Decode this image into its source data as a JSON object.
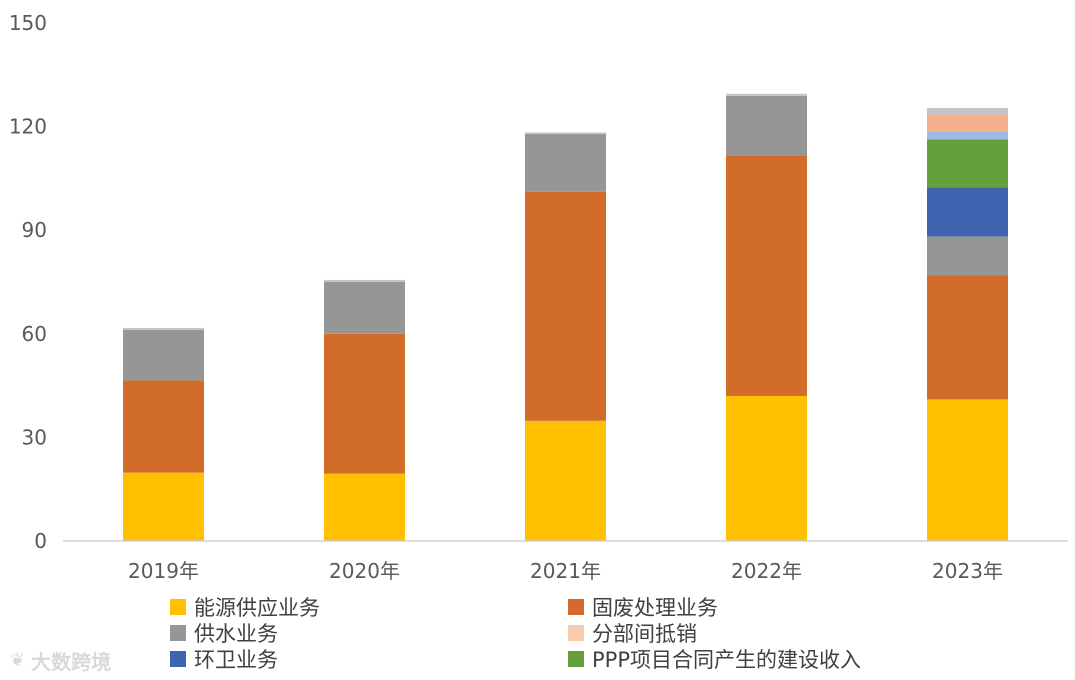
{
  "chart_data": {
    "type": "bar",
    "stacked": true,
    "categories": [
      "2019年",
      "2020年",
      "2021年",
      "2022年",
      "2023年"
    ],
    "ylim": [
      0,
      150
    ],
    "yticks": [
      0,
      30,
      60,
      90,
      120,
      150
    ],
    "grid": false,
    "legend_position": "bottom",
    "series": [
      {
        "name": "能源供应业务",
        "color": "#FFC000",
        "values": [
          19.8,
          19.5,
          34.8,
          42.0,
          41.0
        ]
      },
      {
        "name": "固废处理业务",
        "color": "#D26C29",
        "values": [
          26.7,
          40.5,
          66.3,
          69.6,
          36.0
        ]
      },
      {
        "name": "供水业务",
        "color": "#969696",
        "values": [
          14.6,
          15.0,
          16.8,
          17.3,
          11.2
        ]
      },
      {
        "name": "环卫业务",
        "color": "#3D63B1",
        "values": [
          0,
          0,
          0,
          0,
          14.2
        ]
      },
      {
        "name": "PPP项目合同产生的建设收入",
        "color": "#64A03C",
        "values": [
          0,
          0,
          0,
          0,
          13.9
        ]
      },
      {
        "name": "",
        "color": "#9DB9E4",
        "values": [
          0,
          0,
          0,
          0,
          2.4
        ]
      },
      {
        "name": "分部间抵销",
        "color": "#F4B08C",
        "values": [
          0,
          0,
          0,
          0,
          4.8
        ]
      },
      {
        "name": "",
        "color": "#C5C5C5",
        "values": [
          0.6,
          0.6,
          0.4,
          0.6,
          1.9
        ]
      }
    ]
  },
  "legend": [
    {
      "label": "能源供应业务",
      "color": "#FFC000"
    },
    {
      "label": "固废处理业务",
      "color": "#D26C29"
    },
    {
      "label": "供水业务",
      "color": "#969696"
    },
    {
      "label": "分部间抵销",
      "color": "#F8CBAD"
    },
    {
      "label": "环卫业务",
      "color": "#3D63B1"
    },
    {
      "label": "PPP项目合同产生的建设收入",
      "color": "#64A03C"
    }
  ],
  "watermark": {
    "text": "大数跨境",
    "icon": "logo-swirl-icon"
  }
}
